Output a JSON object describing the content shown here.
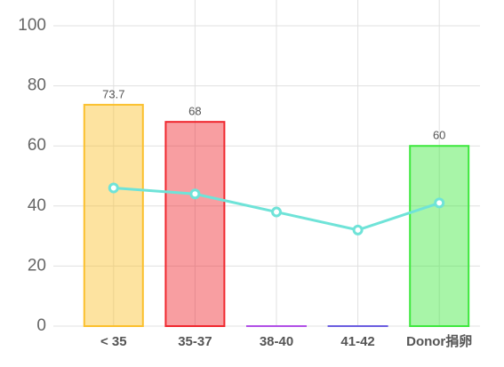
{
  "chart_data": {
    "type": "bar",
    "categories": [
      "< 35",
      "35-37",
      "38-40",
      "41-42",
      "Donor捐卵"
    ],
    "series": [
      {
        "type": "bar",
        "values": [
          73.7,
          68,
          0,
          0,
          60
        ],
        "value_labels": [
          "73.7",
          "68",
          null,
          null,
          "60"
        ],
        "colors": [
          "#fbc02d",
          "#f0282f",
          "#b14fe6",
          "#6a5de0",
          "#3ee83e"
        ]
      },
      {
        "type": "line",
        "color": "#6fe3d8",
        "values": [
          46,
          44,
          38,
          32,
          41
        ]
      }
    ],
    "ylim": [
      0,
      100
    ],
    "yticks": [
      0,
      20,
      40,
      60,
      80,
      100
    ],
    "grid": true,
    "x_grid": true
  }
}
